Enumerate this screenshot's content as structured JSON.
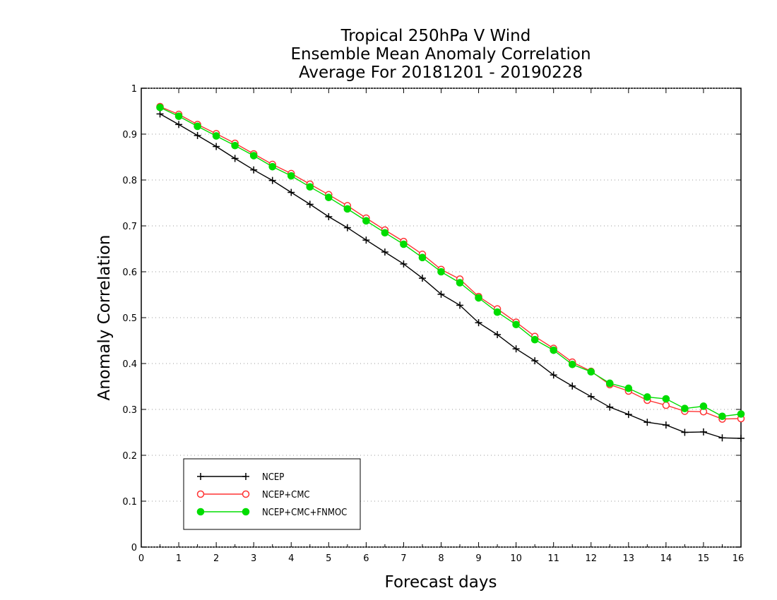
{
  "chart_data": {
    "type": "line",
    "title": [
      "Tropical 250hPa V Wind",
      "Ensemble Mean Anomaly Correlation",
      "Average For 20181201 - 20190228"
    ],
    "xlabel": "Forecast days",
    "ylabel": "Anomaly Correlation",
    "xlim": [
      0,
      16
    ],
    "ylim": [
      0,
      1
    ],
    "xticks": [
      0,
      1,
      2,
      3,
      4,
      5,
      6,
      7,
      8,
      9,
      10,
      11,
      12,
      13,
      14,
      15,
      16
    ],
    "yticks": [
      0,
      0.1,
      0.2,
      0.3,
      0.4,
      0.5,
      0.6,
      0.7,
      0.8,
      0.9,
      1
    ],
    "ytick_labels": [
      "0",
      "0.1",
      "0.2",
      "0.3",
      "0.4",
      "0.5",
      "0.6",
      "0.7",
      "0.8",
      "0.9",
      "1"
    ],
    "grid": "horizontal-dotted",
    "legend_position": "bottom-left",
    "x": [
      0.5,
      1,
      1.5,
      2,
      2.5,
      3,
      3.5,
      4,
      4.5,
      5,
      5.5,
      6,
      6.5,
      7,
      7.5,
      8,
      8.5,
      9,
      9.5,
      10,
      10.5,
      11,
      11.5,
      12,
      12.5,
      13,
      13.5,
      14,
      14.5,
      15,
      15.5,
      16
    ],
    "series": [
      {
        "name": "NCEP",
        "color": "#000000",
        "marker": "plus",
        "values": [
          0.944,
          0.921,
          0.897,
          0.873,
          0.847,
          0.822,
          0.799,
          0.773,
          0.747,
          0.72,
          0.696,
          0.669,
          0.643,
          0.617,
          0.586,
          0.551,
          0.527,
          0.489,
          0.463,
          0.432,
          0.406,
          0.375,
          0.351,
          0.328,
          0.305,
          0.289,
          0.272,
          0.266,
          0.25,
          0.251,
          0.238,
          0.237
        ]
      },
      {
        "name": "NCEP+CMC",
        "color": "#ff3333",
        "marker": "open-circle",
        "values": [
          0.96,
          0.943,
          0.921,
          0.901,
          0.88,
          0.857,
          0.834,
          0.814,
          0.791,
          0.768,
          0.744,
          0.717,
          0.691,
          0.666,
          0.638,
          0.605,
          0.584,
          0.546,
          0.519,
          0.49,
          0.459,
          0.433,
          0.403,
          0.383,
          0.354,
          0.34,
          0.32,
          0.309,
          0.296,
          0.295,
          0.279,
          0.28
        ]
      },
      {
        "name": "NCEP+CMC+FNMOC",
        "color": "#00dd00",
        "marker": "filled-circle",
        "values": [
          0.958,
          0.939,
          0.917,
          0.896,
          0.875,
          0.853,
          0.829,
          0.809,
          0.785,
          0.762,
          0.737,
          0.711,
          0.685,
          0.66,
          0.631,
          0.6,
          0.576,
          0.543,
          0.512,
          0.485,
          0.452,
          0.429,
          0.398,
          0.382,
          0.357,
          0.346,
          0.327,
          0.323,
          0.302,
          0.307,
          0.285,
          0.29
        ]
      }
    ]
  }
}
